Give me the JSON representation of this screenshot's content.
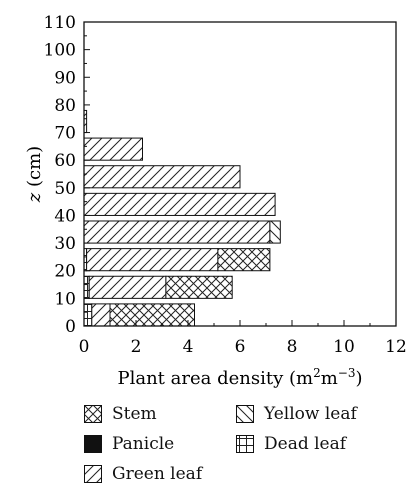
{
  "chart_data": {
    "type": "bar",
    "orientation": "horizontal",
    "stacked": true,
    "xlabel_main": "Plant area density (m",
    "xlabel_sup1": "2",
    "xlabel_mid": "m",
    "xlabel_sup2": "−3",
    "xlabel_end": ")",
    "ylabel_var": "z",
    "ylabel_unit": " (cm)",
    "xlim": [
      0,
      12
    ],
    "ylim": [
      0,
      110
    ],
    "xticks": [
      "0",
      "2",
      "4",
      "6",
      "8",
      "10",
      "12"
    ],
    "yticks": [
      "0",
      "10",
      "20",
      "30",
      "40",
      "50",
      "60",
      "70",
      "80",
      "90",
      "100",
      "110"
    ],
    "grid": false,
    "legend_position": "bottom",
    "bins": [
      {
        "y0": 0,
        "y1": 8,
        "stem": 3.25,
        "panicle": 0,
        "green": 0.7,
        "yellow": 0,
        "dead": 0.3
      },
      {
        "y0": 10,
        "y1": 18,
        "stem": 2.55,
        "panicle": 0,
        "green": 2.95,
        "yellow": 0,
        "dead": 0.2
      },
      {
        "y0": 20,
        "y1": 28,
        "stem": 2.0,
        "panicle": 0,
        "green": 5.05,
        "yellow": 0,
        "dead": 0.1
      },
      {
        "y0": 30,
        "y1": 38,
        "stem": 0,
        "panicle": 0,
        "green": 7.15,
        "yellow": 0.4,
        "dead": 0
      },
      {
        "y0": 40,
        "y1": 48,
        "stem": 0,
        "panicle": 0,
        "green": 7.35,
        "yellow": 0,
        "dead": 0
      },
      {
        "y0": 50,
        "y1": 58,
        "stem": 0,
        "panicle": 0,
        "green": 6.0,
        "yellow": 0,
        "dead": 0
      },
      {
        "y0": 60,
        "y1": 68,
        "stem": 0,
        "panicle": 0,
        "green": 2.25,
        "yellow": 0,
        "dead": 0
      },
      {
        "y0": 70,
        "y1": 78,
        "stem": 0,
        "panicle": 0,
        "green": 0.1,
        "yellow": 0,
        "dead": 0
      }
    ],
    "stack_order": [
      "dead",
      "green",
      "stem",
      "yellow",
      "panicle"
    ],
    "legend": [
      {
        "key": "stem",
        "label": "Stem"
      },
      {
        "key": "yellow",
        "label": "Yellow leaf"
      },
      {
        "key": "panicle",
        "label": "Panicle"
      },
      {
        "key": "dead",
        "label": "Dead leaf"
      },
      {
        "key": "green",
        "label": "Green leaf"
      }
    ]
  }
}
